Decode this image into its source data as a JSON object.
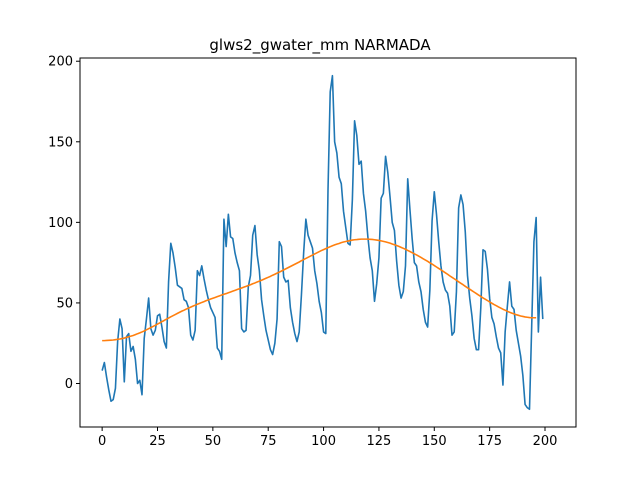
{
  "chart_data": {
    "type": "line",
    "title": "glws2_gwater_mm NARMADA",
    "xlabel": "",
    "ylabel": "",
    "xlim": [
      -10,
      214
    ],
    "ylim": [
      -27,
      202
    ],
    "x_ticks": [
      0,
      25,
      50,
      75,
      100,
      125,
      150,
      175,
      200
    ],
    "y_ticks": [
      0,
      50,
      100,
      150,
      200
    ],
    "grid": false,
    "colors": {
      "series_1": "#1f77b4",
      "series_2": "#ff7f0e"
    },
    "series": [
      {
        "x_start": 0,
        "x_step": 1,
        "values": [
          8,
          13,
          4,
          -4,
          -11,
          -10,
          -3,
          26,
          40,
          34,
          1,
          29,
          31,
          20,
          23,
          15,
          0,
          2,
          -7,
          28,
          40,
          53,
          34,
          30,
          33,
          42,
          43,
          35,
          26,
          22,
          63,
          87,
          81,
          72,
          61,
          60,
          59,
          52,
          51,
          47,
          30,
          27,
          33,
          70,
          67,
          73,
          65,
          58,
          52,
          47,
          44,
          41,
          22,
          20,
          15,
          102,
          85,
          105,
          91,
          90,
          81,
          75,
          70,
          34,
          32,
          33,
          60,
          67,
          92,
          98,
          80,
          70,
          52,
          42,
          33,
          27,
          21,
          18,
          25,
          40,
          88,
          85,
          66,
          63,
          64,
          47,
          38,
          31,
          26,
          32,
          55,
          81,
          102,
          92,
          88,
          84,
          70,
          62,
          51,
          44,
          32,
          31,
          120,
          181,
          191,
          150,
          143,
          128,
          124,
          107,
          97,
          87,
          86,
          114,
          163,
          154,
          136,
          138,
          118,
          107,
          91,
          78,
          70,
          51,
          62,
          78,
          115,
          118,
          141,
          131,
          116,
          100,
          95,
          76,
          61,
          53,
          57,
          73,
          127,
          108,
          90,
          75,
          73,
          63,
          57,
          46,
          38,
          35,
          58,
          101,
          119,
          105,
          88,
          73,
          63,
          58,
          56,
          48,
          30,
          32,
          57,
          109,
          117,
          111,
          94,
          67,
          53,
          42,
          28,
          21,
          21,
          47,
          83,
          82,
          71,
          53,
          41,
          37,
          29,
          22,
          19,
          -1,
          32,
          48,
          63,
          48,
          46,
          33,
          25,
          17,
          5,
          -13,
          -15,
          -16,
          36,
          88,
          103,
          32,
          66,
          40
        ]
      },
      {
        "x_start": 0,
        "x_step": 1,
        "values": [
          26.6,
          26.6,
          26.7,
          26.8,
          26.9,
          27.0,
          27.2,
          27.4,
          27.6,
          27.9,
          28.2,
          28.6,
          29.0,
          29.4,
          29.8,
          30.3,
          30.9,
          31.4,
          32.0,
          32.6,
          33.3,
          34.0,
          34.7,
          35.4,
          36.1,
          36.9,
          37.6,
          38.4,
          39.1,
          39.9,
          40.6,
          41.4,
          42.1,
          42.8,
          43.5,
          44.2,
          44.9,
          45.5,
          46.2,
          46.8,
          47.4,
          48.0,
          48.6,
          49.2,
          49.7,
          50.3,
          50.8,
          51.4,
          51.9,
          52.4,
          52.9,
          53.4,
          53.9,
          54.4,
          54.9,
          55.4,
          55.8,
          56.3,
          56.8,
          57.3,
          57.8,
          58.3,
          58.8,
          59.3,
          59.8,
          60.3,
          60.8,
          61.3,
          61.9,
          62.4,
          63.0,
          63.5,
          64.1,
          64.7,
          65.3,
          65.9,
          66.5,
          67.2,
          67.8,
          68.5,
          69.1,
          69.8,
          70.5,
          71.2,
          71.9,
          72.6,
          73.3,
          74.0,
          74.7,
          75.4,
          76.2,
          76.9,
          77.6,
          78.3,
          79.0,
          79.7,
          80.4,
          81.1,
          81.8,
          82.5,
          83.1,
          83.7,
          84.3,
          84.9,
          85.5,
          86.0,
          86.5,
          86.9,
          87.4,
          87.8,
          88.1,
          88.4,
          88.7,
          89.0,
          89.2,
          89.3,
          89.5,
          89.6,
          89.6,
          89.6,
          89.6,
          89.5,
          89.4,
          89.2,
          89.0,
          88.8,
          88.5,
          88.2,
          87.9,
          87.5,
          87.1,
          86.6,
          86.1,
          85.6,
          85.1,
          84.5,
          83.9,
          83.3,
          82.6,
          81.9,
          81.2,
          80.5,
          79.8,
          79.0,
          78.2,
          77.4,
          76.6,
          75.8,
          74.9,
          74.1,
          73.2,
          72.3,
          71.4,
          70.5,
          69.6,
          68.7,
          67.8,
          66.8,
          65.9,
          65.0,
          64.1,
          63.1,
          62.2,
          61.3,
          60.3,
          59.4,
          58.5,
          57.6,
          56.7,
          55.8,
          54.9,
          54.0,
          53.1,
          52.3,
          51.5,
          50.6,
          49.8,
          49.0,
          48.3,
          47.5,
          46.8,
          46.1,
          45.5,
          44.8,
          44.2,
          43.7,
          43.2,
          42.7,
          42.3,
          41.9,
          41.6,
          41.3,
          41.1,
          40.9,
          40.8,
          40.8,
          40.8
        ]
      }
    ]
  }
}
